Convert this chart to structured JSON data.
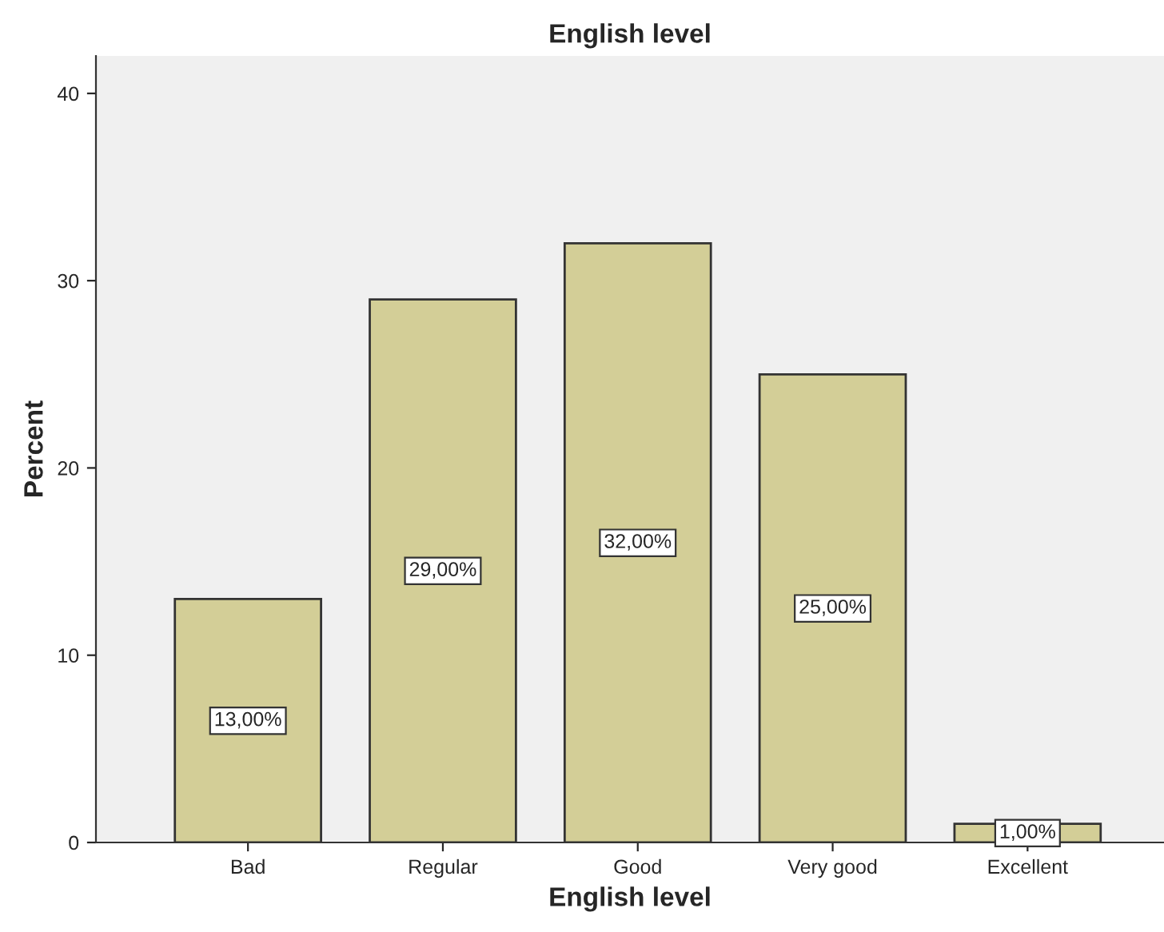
{
  "chart_data": {
    "type": "bar",
    "title": "English level",
    "xlabel": "English level",
    "ylabel": "Percent",
    "categories": [
      "Bad",
      "Regular",
      "Good",
      "Very good",
      "Excellent"
    ],
    "values": [
      13,
      29,
      32,
      25,
      1
    ],
    "value_labels": [
      "13,00%",
      "29,00%",
      "32,00%",
      "25,00%",
      "1,00%"
    ],
    "color": "#d3ce97",
    "ylim": [
      0,
      42
    ],
    "yticks": [
      0,
      10,
      20,
      30,
      40
    ],
    "grid": false,
    "legend": false
  }
}
